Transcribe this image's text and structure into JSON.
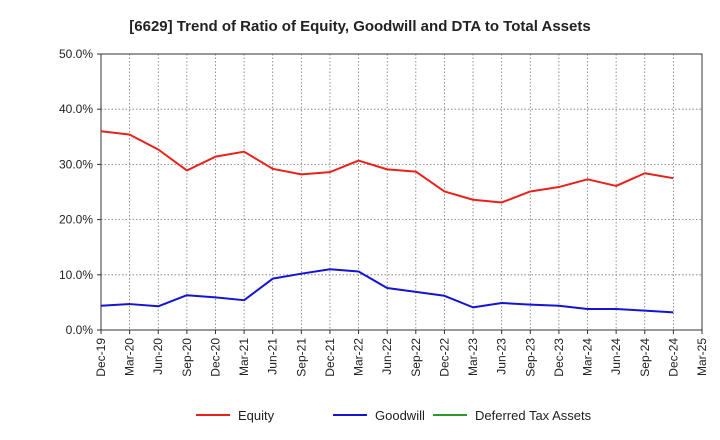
{
  "chart_data": {
    "type": "line",
    "title": "[6629]  Trend of Ratio of Equity, Goodwill and DTA to Total Assets",
    "xlabel": "",
    "ylabel": "",
    "ylim": [
      0,
      50
    ],
    "y_ticks": [
      0,
      10,
      20,
      30,
      40,
      50
    ],
    "y_tick_labels": [
      "0.0%",
      "10.0%",
      "20.0%",
      "30.0%",
      "40.0%",
      "50.0%"
    ],
    "categories": [
      "Dec-19",
      "Mar-20",
      "Jun-20",
      "Sep-20",
      "Dec-20",
      "Mar-21",
      "Jun-21",
      "Sep-21",
      "Dec-21",
      "Mar-22",
      "Jun-22",
      "Sep-22",
      "Dec-22",
      "Mar-23",
      "Jun-23",
      "Sep-23",
      "Dec-23",
      "Mar-24",
      "Jun-24",
      "Sep-24",
      "Dec-24",
      "Mar-25"
    ],
    "grid": true,
    "legend_position": "bottom",
    "series": [
      {
        "name": "Equity",
        "color": "#e8211a",
        "values": [
          36.0,
          35.4,
          32.7,
          28.9,
          31.4,
          32.3,
          29.2,
          28.2,
          28.6,
          30.7,
          29.1,
          28.7,
          25.1,
          23.6,
          23.1,
          25.1,
          25.9,
          27.3,
          26.1,
          28.4,
          27.5,
          null
        ]
      },
      {
        "name": "Goodwill",
        "color": "#1414d2",
        "values": [
          4.4,
          4.7,
          4.3,
          6.3,
          5.9,
          5.4,
          9.3,
          10.2,
          11.0,
          10.6,
          7.6,
          6.9,
          6.2,
          4.1,
          4.9,
          4.6,
          4.4,
          3.8,
          3.8,
          3.5,
          3.2,
          null
        ]
      },
      {
        "name": "Deferred Tax Assets",
        "color": "#2a9a2a",
        "values": [
          null,
          null,
          null,
          null,
          null,
          null,
          null,
          null,
          null,
          null,
          null,
          null,
          null,
          null,
          null,
          null,
          null,
          null,
          null,
          null,
          null,
          null
        ]
      }
    ]
  }
}
